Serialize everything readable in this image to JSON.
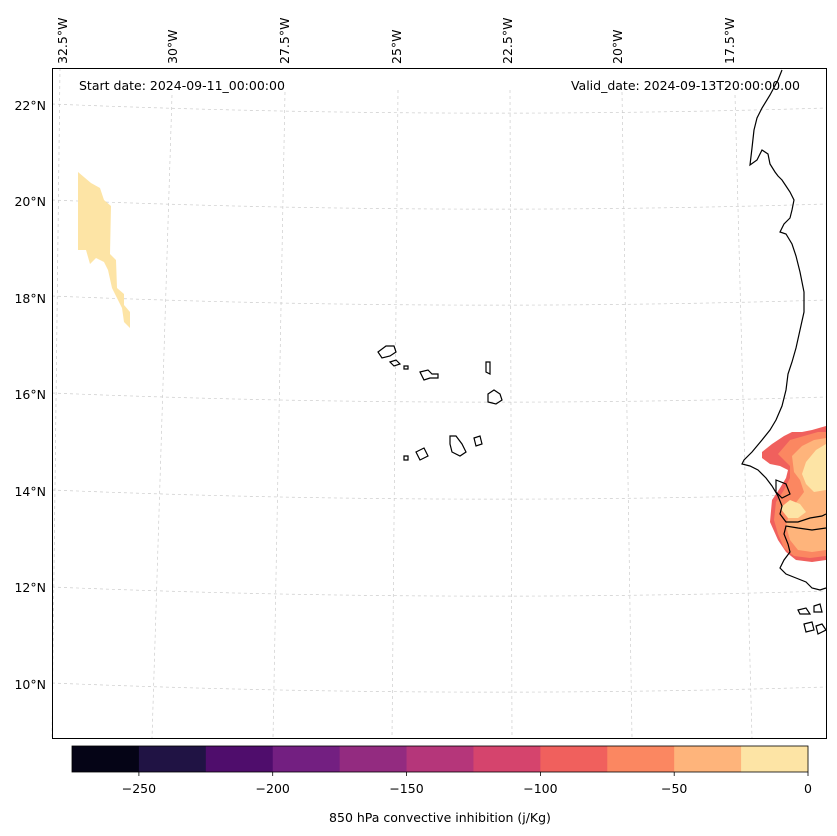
{
  "map": {
    "start_date": "Start date: 2024-09-11_00:00:00",
    "valid_date": "Valid_date: 2024-09-13T20:00:00.00",
    "lon_labels": [
      "32.5°W",
      "30°W",
      "27.5°W",
      "25°W",
      "22.5°W",
      "20°W",
      "17.5°W"
    ],
    "lat_labels": [
      "22°N",
      "20°N",
      "18°N",
      "16°N",
      "14°N",
      "12°N",
      "10°N"
    ]
  },
  "colorbar": {
    "label": "850 hPa convective inhibition (j/Kg)",
    "tick_labels": [
      "−250",
      "−200",
      "−150",
      "−100",
      "−50",
      "0"
    ],
    "colors": [
      "#050416",
      "#201344",
      "#4f0d6c",
      "#731f81",
      "#932b80",
      "#b5367a",
      "#d5446d",
      "#f0605d",
      "#fb8761",
      "#feb47b",
      "#fde4a5"
    ]
  }
}
